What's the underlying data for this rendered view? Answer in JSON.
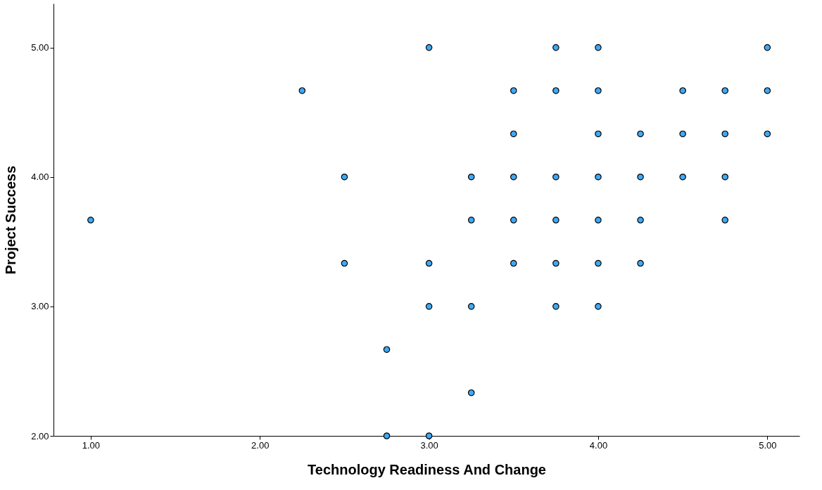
{
  "chart_data": {
    "type": "scatter",
    "xlabel": "Technology Readiness And Change",
    "ylabel": "Project Success",
    "x": [
      1.0,
      2.25,
      2.5,
      2.5,
      2.75,
      2.75,
      3.0,
      3.0,
      3.0,
      3.0,
      3.25,
      3.25,
      3.25,
      3.25,
      3.5,
      3.5,
      3.5,
      3.5,
      3.5,
      3.75,
      3.75,
      3.75,
      3.75,
      3.75,
      3.75,
      4.0,
      4.0,
      4.0,
      4.0,
      4.0,
      4.0,
      4.0,
      4.25,
      4.25,
      4.25,
      4.25,
      4.5,
      4.5,
      4.5,
      4.75,
      4.75,
      4.75,
      4.75,
      5.0,
      5.0,
      5.0
    ],
    "series": [
      {
        "color": "#3fa9f5",
        "values": [
          3.667,
          4.667,
          4,
          3.333,
          2.667,
          2,
          5,
          3.333,
          3,
          2,
          4,
          3.667,
          3,
          2.333,
          4.667,
          4.333,
          4,
          3.667,
          3.333,
          5,
          4.667,
          4,
          3.667,
          3.333,
          3,
          5,
          4.667,
          4.333,
          4,
          3.667,
          3.333,
          3,
          4.333,
          4,
          3.667,
          3.333,
          4.667,
          4.333,
          4,
          4.667,
          4.333,
          4,
          3.667,
          5,
          4.667,
          4.333
        ]
      }
    ],
    "xlim": [
      0.78,
      5.19
    ],
    "ylim": [
      2.0,
      5.34
    ],
    "xticks": [
      {
        "value": 1,
        "label": "1.00"
      },
      {
        "value": 2,
        "label": "2.00"
      },
      {
        "value": 3,
        "label": "3.00"
      },
      {
        "value": 4,
        "label": "4.00"
      },
      {
        "value": 5,
        "label": "5.00"
      }
    ],
    "yticks": [
      {
        "value": 2,
        "label": "2.00"
      },
      {
        "value": 3,
        "label": "3.00"
      },
      {
        "value": 4,
        "label": "4.00"
      },
      {
        "value": 5,
        "label": "5.00"
      }
    ],
    "grid": false,
    "marker": "circle"
  }
}
